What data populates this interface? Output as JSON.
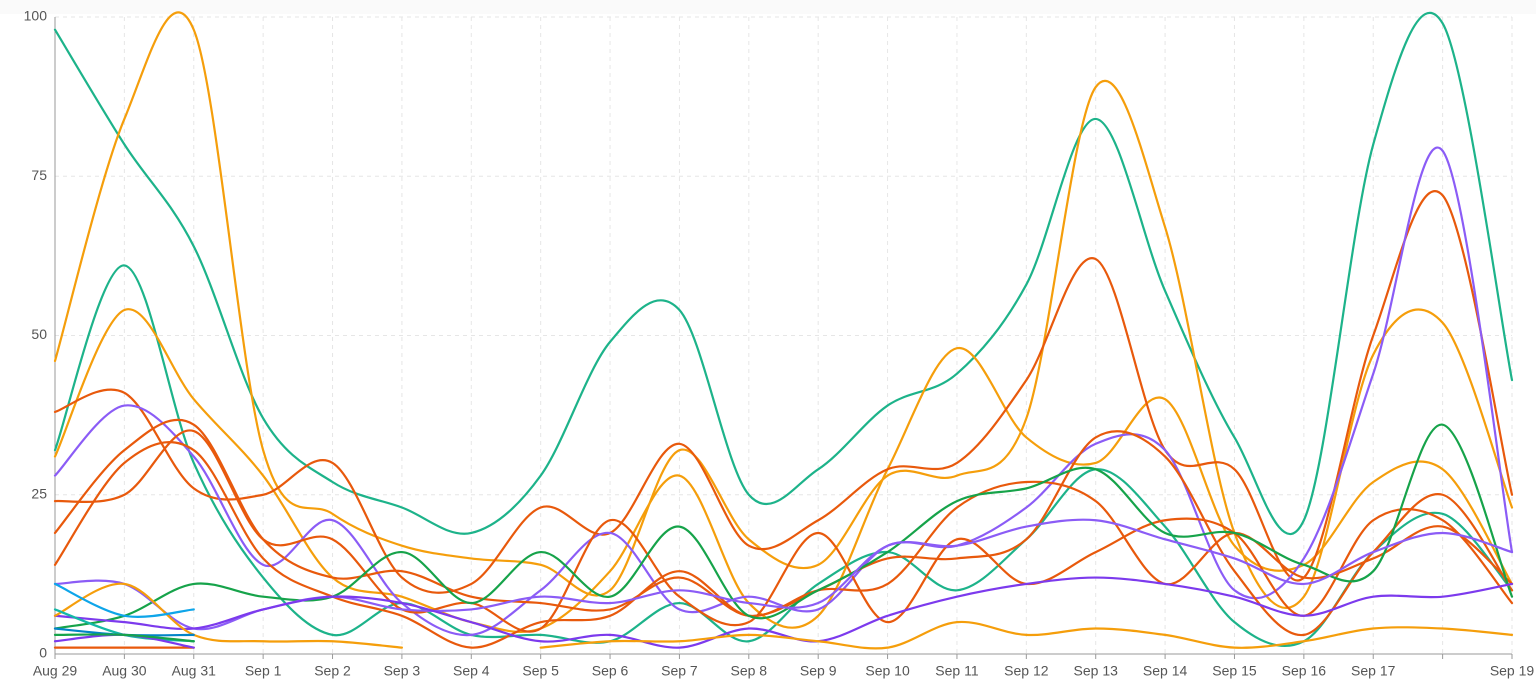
{
  "chart_data": {
    "type": "line",
    "categories": [
      "Aug 29",
      "Aug 30",
      "Aug 31",
      "Sep 1",
      "Sep 2",
      "Sep 3",
      "Sep 4",
      "Sep 5",
      "Sep 6",
      "Sep 7",
      "Sep 8",
      "Sep 9",
      "Sep 10",
      "Sep 11",
      "Sep 12",
      "Sep 13",
      "Sep 14",
      "Sep 15",
      "Sep 16",
      "Sep 17",
      null,
      "Sep 19"
    ],
    "ylim": [
      0,
      100
    ],
    "yticks": [
      0,
      25,
      50,
      75,
      100
    ],
    "grid": true,
    "smooth": true,
    "series": [
      {
        "color": "#1db38a",
        "values": [
          98,
          80,
          64,
          37,
          27,
          23,
          19,
          28,
          49,
          54,
          25,
          29,
          39,
          44,
          58,
          84,
          57,
          34,
          21,
          80,
          99,
          43
        ]
      },
      {
        "color": "#f59e0b",
        "values": [
          46,
          84,
          98,
          32,
          22,
          17,
          15,
          14,
          10,
          32,
          18,
          14,
          28,
          28,
          37,
          89,
          67,
          19,
          9,
          47,
          52,
          23
        ]
      },
      {
        "color": "#1db38a",
        "values": [
          32,
          61,
          30,
          12,
          3,
          8,
          3,
          3,
          2,
          8,
          2,
          11,
          16,
          10,
          18,
          29,
          20,
          5,
          2,
          16,
          22,
          10
        ]
      },
      {
        "color": "#f59e0b",
        "values": [
          31,
          54,
          40,
          28,
          12,
          9,
          5,
          4,
          13,
          28,
          8,
          6,
          29,
          48,
          34,
          30,
          40,
          17,
          14,
          27,
          29,
          11
        ]
      },
      {
        "color": "#e8590c",
        "values": [
          38,
          41,
          26,
          25,
          30,
          12,
          11,
          23,
          19,
          33,
          17,
          21,
          29,
          30,
          43,
          62,
          32,
          29,
          12,
          50,
          72,
          25
        ]
      },
      {
        "color": "#8b5cf6",
        "values": [
          28,
          39,
          31,
          14,
          21,
          8,
          3,
          10,
          19,
          7,
          9,
          7,
          17,
          17,
          23,
          33,
          32,
          10,
          15,
          44,
          79,
          16
        ]
      },
      {
        "color": "#e8590c",
        "values": [
          24,
          25,
          35,
          18,
          18,
          7,
          8,
          4,
          21,
          9,
          5,
          19,
          5,
          18,
          11,
          16,
          21,
          19,
          6,
          21,
          21,
          8
        ]
      },
      {
        "color": "#e8590c",
        "values": [
          19,
          32,
          36,
          18,
          12,
          13,
          9,
          8,
          7,
          12,
          6,
          10,
          15,
          15,
          18,
          34,
          31,
          13,
          3,
          16,
          25,
          10
        ]
      },
      {
        "color": "#e8590c",
        "values": [
          14,
          30,
          32,
          15,
          9,
          6,
          1,
          5,
          6,
          13,
          6,
          10,
          11,
          23,
          27,
          24,
          11,
          19,
          12,
          15,
          20,
          11
        ]
      },
      {
        "color": "#16a34a",
        "values": [
          4,
          6,
          11,
          9,
          9,
          16,
          8,
          16,
          9,
          20,
          6,
          10,
          16,
          24,
          26,
          29,
          19,
          19,
          14,
          13,
          36,
          9
        ]
      },
      {
        "color": "#8b5cf6",
        "values": [
          11,
          11,
          4,
          7,
          9,
          7,
          7,
          9,
          8,
          10,
          8,
          8,
          17,
          17,
          20,
          21,
          18,
          15,
          11,
          16,
          19,
          16
        ]
      },
      {
        "color": "#7c3aed",
        "values": [
          6,
          5,
          4,
          7,
          9,
          8,
          5,
          2,
          3,
          1,
          4,
          2,
          6,
          9,
          11,
          12,
          11,
          9,
          6,
          9,
          9,
          11
        ]
      },
      {
        "color": "#f59e0b",
        "values": [
          6,
          11,
          3,
          2,
          2,
          1,
          null,
          1,
          2,
          2,
          3,
          2,
          1,
          5,
          3,
          4,
          3,
          1,
          2,
          4,
          4,
          3
        ]
      },
      {
        "color": "#0ea5e9",
        "values": [
          11,
          6,
          7,
          null,
          null,
          null,
          null,
          null,
          null,
          null,
          null,
          null,
          null,
          null,
          null,
          null,
          null,
          null,
          null,
          null,
          null,
          null
        ]
      },
      {
        "color": "#14b8a6",
        "values": [
          7,
          3,
          2,
          null,
          null,
          null,
          null,
          null,
          null,
          null,
          null,
          null,
          null,
          null,
          null,
          null,
          null,
          null,
          null,
          null,
          null,
          null
        ]
      },
      {
        "color": "#0284c7",
        "values": [
          4,
          3,
          3,
          null,
          null,
          null,
          null,
          null,
          null,
          null,
          null,
          null,
          null,
          null,
          null,
          null,
          null,
          null,
          null,
          null,
          null,
          null
        ]
      },
      {
        "color": "#e8590c",
        "values": [
          1,
          1,
          1,
          null,
          null,
          null,
          null,
          null,
          null,
          null,
          null,
          null,
          null,
          null,
          null,
          null,
          null,
          null,
          null,
          null,
          null,
          null
        ]
      },
      {
        "color": "#7c3aed",
        "values": [
          2,
          3,
          1,
          null,
          null,
          null,
          null,
          null,
          null,
          null,
          null,
          null,
          null,
          null,
          null,
          null,
          null,
          null,
          null,
          null,
          null,
          null
        ]
      },
      {
        "color": "#16a34a",
        "values": [
          3,
          3,
          2,
          null,
          null,
          null,
          null,
          null,
          null,
          null,
          null,
          null,
          null,
          null,
          null,
          null,
          null,
          null,
          null,
          null,
          null,
          null
        ]
      }
    ]
  }
}
